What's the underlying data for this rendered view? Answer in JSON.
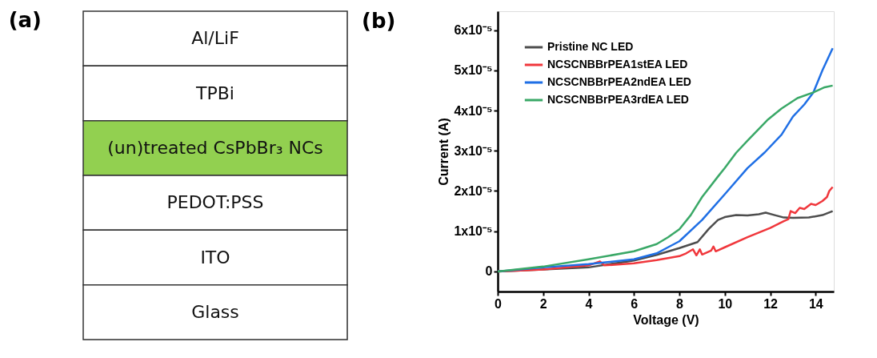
{
  "chart_data": [
    {
      "type": "other",
      "title": "(a)",
      "categories": [
        "Al/LiF",
        "TPBi",
        "(un)treated CsPbBr₃ NCs",
        "PEDOT:PSS",
        "ITO",
        "Glass"
      ],
      "colors": [
        "#ffffff",
        "#ffffff",
        "#92d050",
        "#ffffff",
        "#ffffff",
        "#ffffff"
      ]
    },
    {
      "type": "line",
      "title": "(b)",
      "xlabel": "Voltage (V)",
      "ylabel": "Current (A)",
      "xlim": [
        0,
        14.8
      ],
      "ylim": [
        -5e-06,
        6.47e-05
      ],
      "xticks": [
        0,
        2,
        4,
        6,
        8,
        10,
        12,
        14
      ],
      "yticks": [
        0,
        {
          "value": 1e-05,
          "label": "1x10⁻⁵"
        },
        {
          "value": 2e-05,
          "label": "2x10⁻⁵"
        },
        {
          "value": 3e-05,
          "label": "3x10⁻⁵"
        },
        {
          "value": 4e-05,
          "label": "4x10⁻⁵"
        },
        {
          "value": 5e-05,
          "label": "5x10⁻⁵"
        },
        {
          "value": 6e-05,
          "label": "6x10⁻⁵"
        }
      ],
      "grid": false,
      "legend": "top left",
      "marker": "none",
      "line_style": "solid",
      "series": [
        {
          "name": "Pristine NC LED",
          "color": "#4d4d4d",
          "x": [
            0,
            2,
            4,
            6,
            7,
            8,
            8.8,
            9.3,
            9.7,
            10,
            10.5,
            11,
            11.5,
            11.8,
            12.2,
            12.6,
            13,
            13.7,
            14.3,
            14.75
          ],
          "values": [
            0,
            5e-07,
            1e-06,
            2.7e-06,
            4.1e-06,
            5.8e-06,
            7.3e-06,
            1.06e-05,
            1.28e-05,
            1.35e-05,
            1.4e-05,
            1.39e-05,
            1.42e-05,
            1.46e-05,
            1.4e-05,
            1.34e-05,
            1.33e-05,
            1.34e-05,
            1.4e-05,
            1.5e-05
          ]
        },
        {
          "name": "NCSCNBBrPEA1stEA LED",
          "color": "#f0373c",
          "x": [
            0,
            2,
            4,
            4.5,
            4.7,
            6,
            7,
            8,
            8.3,
            8.6,
            8.75,
            8.9,
            9.0,
            9.4,
            9.5,
            9.6,
            10,
            11,
            12,
            12.6,
            12.8,
            12.9,
            13.1,
            13.3,
            13.5,
            13.8,
            14,
            14.3,
            14.5,
            14.6,
            14.75
          ],
          "values": [
            0,
            5e-07,
            1.5e-06,
            2.5e-06,
            1.5e-06,
            2e-06,
            2.8e-06,
            3.8e-06,
            4.5e-06,
            5.5e-06,
            4e-06,
            5.5e-06,
            4.2e-06,
            5.2e-06,
            6.2e-06,
            5e-06,
            6e-06,
            8.5e-06,
            1.08e-05,
            1.25e-05,
            1.3e-05,
            1.5e-05,
            1.45e-05,
            1.58e-05,
            1.55e-05,
            1.68e-05,
            1.65e-05,
            1.75e-05,
            1.85e-05,
            2e-05,
            2.1e-05
          ]
        },
        {
          "name": "NCSCNBBrPEA2ndEA LED",
          "color": "#1f6fe5",
          "x": [
            0,
            2,
            4,
            6,
            7,
            7.5,
            8,
            9,
            10,
            11,
            11.76,
            12.5,
            13,
            13.5,
            13.9,
            14.3,
            14.75
          ],
          "values": [
            0,
            1e-06,
            1.8e-06,
            3e-06,
            4.5e-06,
            6e-06,
            7.5e-06,
            1.28e-05,
            1.92e-05,
            2.57e-05,
            2.96e-05,
            3.4e-05,
            3.85e-05,
            4.15e-05,
            4.45e-05,
            5e-05,
            5.55e-05
          ]
        },
        {
          "name": "NCSCNBBrPEA3rdEA LED",
          "color": "#3aa867",
          "x": [
            0,
            2,
            4,
            6,
            7,
            7.5,
            8,
            8.5,
            9,
            9.7,
            10,
            10.5,
            11,
            11.87,
            12.5,
            13.2,
            13.9,
            14.4,
            14.75
          ],
          "values": [
            0,
            1.2e-06,
            3e-06,
            5e-06,
            6.8e-06,
            8.5e-06,
            1.05e-05,
            1.4e-05,
            1.85e-05,
            2.36e-05,
            2.57e-05,
            2.95e-05,
            3.25e-05,
            3.76e-05,
            4.05e-05,
            4.31e-05,
            4.45e-05,
            4.58e-05,
            4.62e-05
          ]
        }
      ]
    }
  ]
}
